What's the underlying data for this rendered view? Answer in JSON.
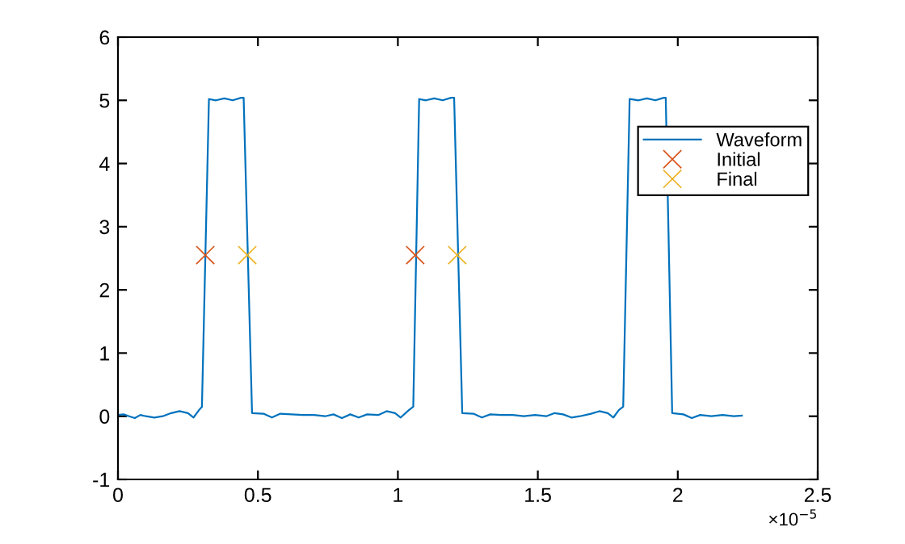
{
  "chart_data": {
    "type": "line",
    "xlim": [
      0,
      2.5
    ],
    "xticks": [
      0,
      0.5,
      1,
      1.5,
      2,
      2.5
    ],
    "ylim": [
      -1,
      6
    ],
    "yticks": [
      -1,
      0,
      1,
      2,
      3,
      4,
      5,
      6
    ],
    "grid": false,
    "legend": "right",
    "annotations": [
      "×10$^{−5}$"
    ],
    "series": [
      {
        "name": "Waveform",
        "color": "#0072bd",
        "marker": "none",
        "line_style": "solid",
        "x": [
          0,
          0.02,
          0.04,
          0.06,
          0.08,
          0.1,
          0.13,
          0.16,
          0.19,
          0.22,
          0.25,
          0.27,
          0.29,
          0.3,
          0.325,
          0.35,
          0.38,
          0.41,
          0.44,
          0.449,
          0.479,
          0.52,
          0.55,
          0.58,
          0.62,
          0.66,
          0.7,
          0.74,
          0.77,
          0.8,
          0.83,
          0.86,
          0.89,
          0.93,
          0.96,
          0.99,
          1.01,
          1.04,
          1.055,
          1.076,
          1.1,
          1.13,
          1.16,
          1.19,
          1.201,
          1.23,
          1.27,
          1.3,
          1.33,
          1.37,
          1.41,
          1.45,
          1.49,
          1.53,
          1.56,
          1.59,
          1.62,
          1.65,
          1.69,
          1.72,
          1.75,
          1.77,
          1.79,
          1.805,
          1.828,
          1.86,
          1.89,
          1.92,
          1.95,
          1.957,
          1.98,
          2.02,
          2.05,
          2.08,
          2.12,
          2.16,
          2.2,
          2.229
        ],
        "values": [
          0.02,
          0.03,
          0.0,
          -0.03,
          0.02,
          0.0,
          -0.02,
          0.0,
          0.05,
          0.08,
          0.05,
          -0.02,
          0.1,
          0.15,
          5.02,
          5.0,
          5.03,
          5.0,
          5.04,
          5.04,
          0.05,
          0.04,
          -0.02,
          0.04,
          0.03,
          0.02,
          0.02,
          0.0,
          0.03,
          -0.03,
          0.03,
          -0.02,
          0.03,
          0.02,
          0.08,
          0.05,
          -0.02,
          0.1,
          0.15,
          5.02,
          5.0,
          5.03,
          5.0,
          5.04,
          5.04,
          0.05,
          0.04,
          -0.02,
          0.03,
          0.02,
          0.02,
          0.0,
          0.02,
          0.0,
          0.05,
          0.03,
          -0.02,
          0.0,
          0.04,
          0.08,
          0.05,
          -0.02,
          0.1,
          0.15,
          5.02,
          5.0,
          5.03,
          5.0,
          5.04,
          5.04,
          0.05,
          0.03,
          -0.03,
          0.02,
          0.0,
          0.02,
          0.0,
          0.01
        ]
      },
      {
        "name": "Initial",
        "type": "scatter",
        "color": "#d95319",
        "marker": "cross",
        "x": [
          0.312,
          1.062
        ],
        "values": [
          2.55,
          2.55
        ]
      },
      {
        "name": "Final",
        "type": "scatter",
        "color": "#edb120",
        "marker": "cross",
        "x": [
          0.462,
          1.212
        ],
        "values": [
          2.55,
          2.55
        ]
      }
    ]
  }
}
